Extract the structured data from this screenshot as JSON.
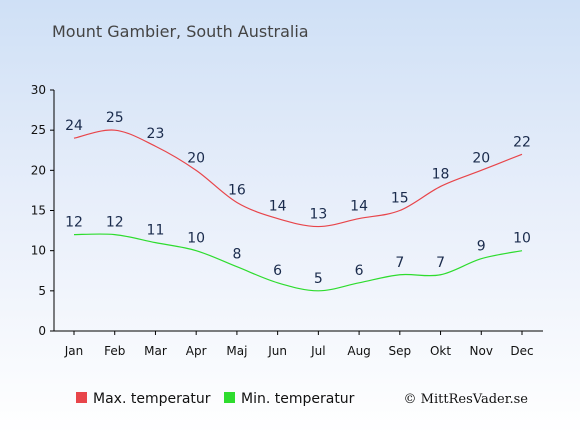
{
  "chart_data": {
    "type": "line",
    "title": "Mount Gambier, South Australia",
    "categories": [
      "Jan",
      "Feb",
      "Mar",
      "Apr",
      "Maj",
      "Jun",
      "Jul",
      "Aug",
      "Sep",
      "Okt",
      "Nov",
      "Dec"
    ],
    "series": [
      {
        "name": "Max. temperatur",
        "color": "#e8454a",
        "values": [
          24,
          25,
          23,
          20,
          16,
          14,
          13,
          14,
          15,
          18,
          20,
          22
        ]
      },
      {
        "name": "Min. temperatur",
        "color": "#2edc2e",
        "values": [
          12,
          12,
          11,
          10,
          8,
          6,
          5,
          6,
          7,
          7,
          9,
          10
        ]
      }
    ],
    "yticks": [
      0,
      5,
      10,
      15,
      20,
      25,
      30
    ],
    "ylim": [
      0,
      30
    ],
    "xlabel": "",
    "ylabel": "",
    "grid": false,
    "legend_position": "bottom-left"
  },
  "credit": "© MittResVader.se"
}
